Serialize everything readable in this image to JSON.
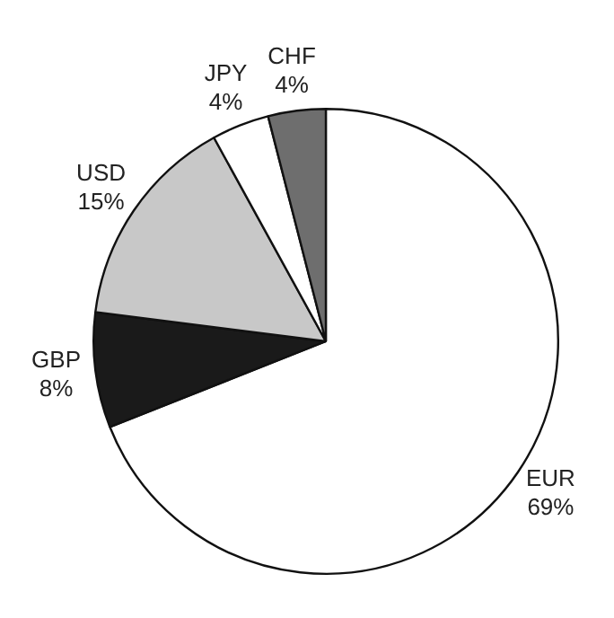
{
  "chart_data": {
    "type": "pie",
    "categories": [
      "EUR",
      "GBP",
      "USD",
      "JPY",
      "CHF"
    ],
    "values": [
      69,
      8,
      15,
      4,
      4
    ],
    "value_labels": [
      "69%",
      "8%",
      "15%",
      "4%",
      "4%"
    ],
    "colors": [
      "#ffffff",
      "#1a1a1a",
      "#c8c8c8",
      "#ffffff",
      "#6e6e6e"
    ],
    "legend": false
  }
}
